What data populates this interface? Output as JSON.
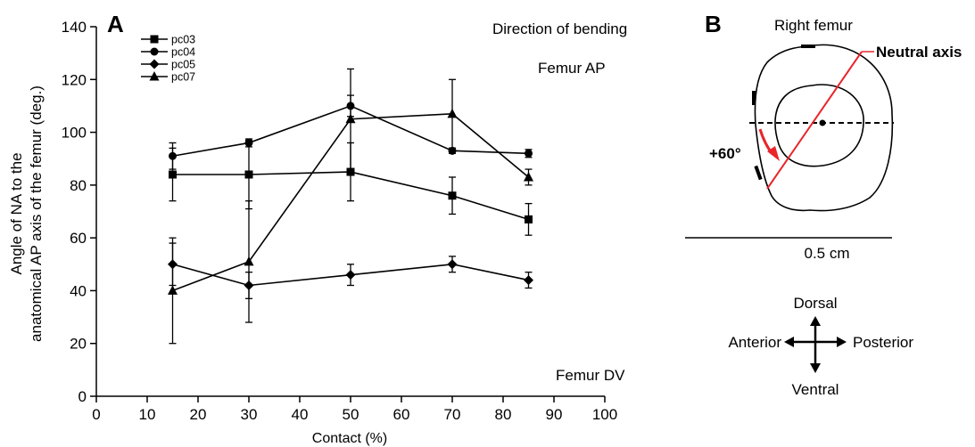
{
  "panels": {
    "a_label": "A",
    "b_label": "B"
  },
  "chart_data": {
    "type": "line",
    "xlabel": "Contact (%)",
    "ylabel_line1": "Angle of NA to the",
    "ylabel_line2": "anatomical AP axis of the femur (deg.)",
    "xlim": [
      0,
      100
    ],
    "ylim": [
      0,
      140
    ],
    "x_ticks": [
      0,
      10,
      20,
      30,
      40,
      50,
      60,
      70,
      80,
      90,
      100
    ],
    "y_ticks": [
      0,
      20,
      40,
      60,
      80,
      100,
      120,
      140
    ],
    "x": [
      15,
      30,
      50,
      70,
      85
    ],
    "series": [
      {
        "name": "pc03",
        "marker": "square",
        "values": [
          84,
          84,
          85,
          76,
          67
        ],
        "errors": [
          10,
          13,
          11,
          7,
          6
        ]
      },
      {
        "name": "pc04",
        "marker": "circle",
        "values": [
          91,
          96,
          110,
          93,
          92
        ],
        "errors": [
          5,
          1.5,
          4,
          1,
          1.5
        ]
      },
      {
        "name": "pc05",
        "marker": "diamond",
        "values": [
          50,
          42,
          46,
          50,
          44
        ],
        "errors": [
          8,
          5,
          4,
          3,
          3
        ]
      },
      {
        "name": "pc07",
        "marker": "triangle",
        "values": [
          40,
          51,
          105,
          107,
          83
        ],
        "errors": [
          20,
          23,
          19,
          13,
          3
        ]
      }
    ],
    "annotations": {
      "direction": "Direction of bending",
      "top": "Femur AP",
      "bottom": "Femur DV"
    },
    "legend_position": "top-left",
    "grid": false
  },
  "diagram": {
    "title": "Right femur",
    "neutral_axis_label": "Neutral axis",
    "angle_label": "+60°",
    "scale_label": "0.5 cm",
    "compass": {
      "dorsal": "Dorsal",
      "ventral": "Ventral",
      "anterior": "Anterior",
      "posterior": "Posterior"
    },
    "accent_color": "#e8262b"
  }
}
